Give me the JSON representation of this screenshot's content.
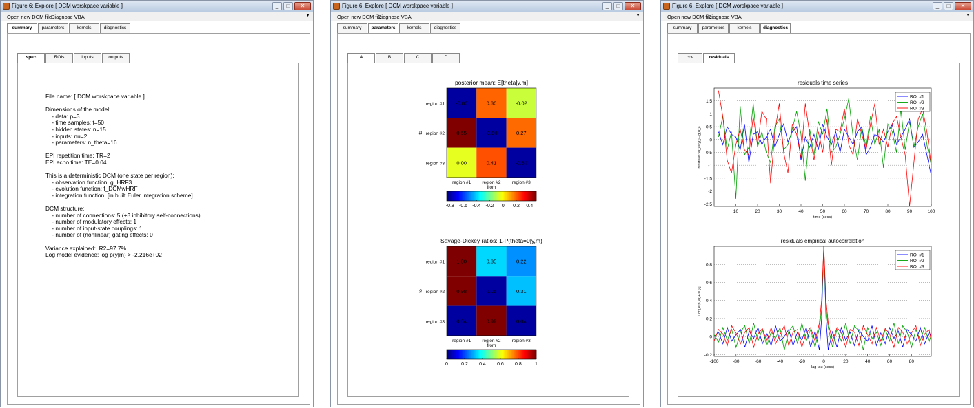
{
  "windows": [
    {
      "title": "Figure 6: Explore [ DCM worskpace variable ]",
      "menu": [
        "Open new DCM file",
        "Diagnose VBA"
      ],
      "tabs": [
        "summary",
        "parameters",
        "kernels",
        "diagnostics"
      ],
      "subtabs": [
        "spec",
        "ROIs",
        "inputs",
        "outputs"
      ]
    },
    {
      "title": "Figure 6: Explore [ DCM worskpace variable ]",
      "menu": [
        "Open new DCM file",
        "Diagnose VBA"
      ],
      "tabs": [
        "summary",
        "parameters",
        "kernels",
        "diagnostics"
      ],
      "subtabs": [
        "A",
        "B",
        "C",
        "D"
      ]
    },
    {
      "title": "Figure 6: Explore [ DCM worskpace variable ]",
      "menu": [
        "Open new DCM file",
        "Diagnose VBA"
      ],
      "tabs": [
        "summary",
        "parameters",
        "kernels",
        "diagnostics"
      ],
      "subtabs": [
        "cov",
        "residuals"
      ]
    }
  ],
  "summary_lines": [
    "File name: [ DCM worskpace variable ]",
    "",
    "Dimensions of the model:",
    "    - data: p=3",
    "    - time samples: t=50",
    "    - hidden states: n=15",
    "    - inputs: nu=2",
    "    - parameters: n_theta=16",
    "",
    "EPI repetition time: TR=2",
    "EPI echo time: TE=0.04",
    "",
    "This is a deterministic DCM (one state per region):",
    "    - observation function: g_HRF3",
    "    - evolution function: f_DCMwHRF",
    "    - integration function: [in built Euler integration scheme]",
    "",
    "DCM structure:",
    "    - number of connections: 5 (+3 inhibitory self-connections)",
    "    - number of modulatory effects: 1",
    "    - number of input-state couplings: 1",
    "    - number of (nonlinear) gating effects: 0",
    "",
    "Variance explained:  R2=97.7%",
    "Log model evidence: log p(y|m) > -2.216e+02"
  ],
  "chart_data": [
    {
      "type": "heatmap",
      "title": "posterior mean: E[theta|y,m]",
      "xlabel": "from",
      "ylabel": "to",
      "rows": [
        "region #1",
        "region #2",
        "region #3"
      ],
      "cols": [
        "region #1",
        "region #2",
        "region #3"
      ],
      "values": [
        [
          -0.8,
          0.3,
          -0.02
        ],
        [
          0.55,
          -0.8,
          0.27
        ],
        [
          0.0,
          0.41,
          -0.8
        ]
      ],
      "labels": [
        [
          "-0.80",
          "0.30",
          "-0.02"
        ],
        [
          "0.55",
          "-0.80",
          "0.27"
        ],
        [
          "0.00",
          "0.41",
          "-0.80"
        ]
      ],
      "colors": [
        [
          "#0000a0",
          "#ff6400",
          "#c8ff3a"
        ],
        [
          "#800000",
          "#0000a0",
          "#ff6a00"
        ],
        [
          "#e6ff20",
          "#ff5000",
          "#0000a0"
        ]
      ],
      "colorbar": {
        "min": -0.85,
        "max": 0.5,
        "ticks": [
          "-0.8",
          "-0.6",
          "-0.4",
          "-0.2",
          "0",
          "0.2",
          "0.4"
        ]
      }
    },
    {
      "type": "heatmap",
      "title": "Savage-Dickey ratios: 1-P(theta=0|y,m)",
      "xlabel": "from",
      "ylabel": "to",
      "rows": [
        "region #1",
        "region #2",
        "region #3"
      ],
      "cols": [
        "region #1",
        "region #2",
        "region #3"
      ],
      "values": [
        [
          1.0,
          0.35,
          0.22
        ],
        [
          0.98,
          0.05,
          0.31
        ],
        [
          0.04,
          0.99,
          0.04
        ]
      ],
      "labels": [
        [
          "1.00",
          "0.35",
          "0.22"
        ],
        [
          "0.98",
          "0.05",
          "0.31"
        ],
        [
          "0.04",
          "0.99",
          "0.04"
        ]
      ],
      "colors": [
        [
          "#7f0000",
          "#00d8ff",
          "#0090ff"
        ],
        [
          "#800000",
          "#0000a0",
          "#00c0ff"
        ],
        [
          "#0000a0",
          "#800000",
          "#0000a0"
        ]
      ],
      "colorbar": {
        "min": 0,
        "max": 1,
        "ticks": [
          "0",
          "0.2",
          "0.4",
          "0.6",
          "0.8",
          "1"
        ]
      }
    },
    {
      "type": "line",
      "title": "residuals time series",
      "xlabel": "time (secs)",
      "ylabel": "residuals: e(t) = y(t) - g(x(t))",
      "xlim": [
        0,
        100
      ],
      "ylim": [
        -2.6,
        2.0
      ],
      "xticks": [
        "10",
        "20",
        "30",
        "40",
        "50",
        "60",
        "70",
        "80",
        "90",
        "100"
      ],
      "yticks": [
        "1.5",
        "1",
        "0.5",
        "0",
        "-0.5",
        "-1",
        "-1.5",
        "-2",
        "-2.5"
      ],
      "x": [
        2,
        4,
        6,
        8,
        10,
        12,
        14,
        16,
        18,
        20,
        22,
        24,
        26,
        28,
        30,
        32,
        34,
        36,
        38,
        40,
        42,
        44,
        46,
        48,
        50,
        52,
        54,
        56,
        58,
        60,
        62,
        64,
        66,
        68,
        70,
        72,
        74,
        76,
        78,
        80,
        82,
        84,
        86,
        88,
        90,
        92,
        94,
        96,
        98,
        100
      ],
      "series": [
        {
          "name": "ROI #1",
          "color": "#0000ff",
          "values": [
            0.3,
            -0.2,
            0.5,
            0.2,
            0.1,
            -0.4,
            0.6,
            -0.9,
            0.2,
            0.3,
            -0.2,
            0.1,
            0.4,
            -0.3,
            0.2,
            0.6,
            -0.1,
            0.3,
            0.5,
            -0.8,
            0.1,
            -0.3,
            0.2,
            -0.4,
            0.6,
            0.1,
            -0.2,
            0.3,
            -0.5,
            0.4,
            0.1,
            -0.2,
            0.3,
            0.5,
            -0.6,
            -0.3,
            0.2,
            0.1,
            -0.1,
            0.3,
            0.6,
            -0.2,
            0.1,
            0.4,
            0.8,
            -0.3,
            -0.1,
            0.2,
            -0.6,
            -1.4
          ]
        },
        {
          "name": "ROI #2",
          "color": "#00a000",
          "values": [
            0.1,
            0.9,
            -0.4,
            0.3,
            -2.3,
            1.3,
            -0.6,
            -0.3,
            1.4,
            -0.3,
            0.3,
            -0.5,
            -0.9,
            0.5,
            0.8,
            -0.4,
            -0.2,
            0.4,
            1.1,
            0.2,
            -1.6,
            0.4,
            -0.6,
            0.7,
            0.2,
            1.2,
            -0.5,
            -0.3,
            0.2,
            0.8,
            1.6,
            0.1,
            -0.8,
            0.5,
            -0.3,
            0.9,
            -0.2,
            0.4,
            -1.1,
            0.6,
            0.3,
            -0.5,
            1.2,
            -0.4,
            0.7,
            -0.3,
            0.5,
            1.0,
            -0.2,
            -1.0
          ]
        },
        {
          "name": "ROI #3",
          "color": "#ff0000",
          "values": [
            1.9,
            0.9,
            -0.8,
            -1.3,
            -0.2,
            0.4,
            -0.4,
            -0.6,
            0.9,
            -0.2,
            1.1,
            0.8,
            -1.7,
            0.3,
            1.4,
            -0.5,
            -1.3,
            0.6,
            0.2,
            -0.7,
            1.4,
            0.2,
            -0.8,
            0.3,
            -0.5,
            0.8,
            -1.0,
            0.4,
            0.3,
            1.2,
            -0.2,
            -0.6,
            0.8,
            0.2,
            -0.4,
            0.6,
            1.4,
            -0.2,
            0.4,
            -0.3,
            0.6,
            0.9,
            0.1,
            -0.6,
            -2.6,
            -0.9,
            0.8,
            1.2,
            0.3,
            -1.0
          ]
        }
      ]
    },
    {
      "type": "line",
      "title": "residuals empirical autocorrelation",
      "xlabel": "lag tau (secs)",
      "ylabel": "Corr[ e(t), e(t+tau) ]",
      "xlim": [
        -100,
        98
      ],
      "ylim": [
        -0.22,
        1.0
      ],
      "xticks": [
        "-100",
        "-80",
        "-60",
        "-40",
        "-20",
        "0",
        "20",
        "40",
        "60",
        "80"
      ],
      "yticks": [
        "0.8",
        "0.6",
        "0.4",
        "0.2",
        "0",
        "-0.2"
      ],
      "x": [
        -100,
        -96,
        -92,
        -88,
        -84,
        -80,
        -76,
        -72,
        -68,
        -64,
        -60,
        -56,
        -52,
        -48,
        -44,
        -40,
        -36,
        -32,
        -28,
        -24,
        -20,
        -16,
        -12,
        -8,
        -4,
        -2,
        0,
        2,
        4,
        8,
        12,
        16,
        20,
        24,
        28,
        32,
        36,
        40,
        44,
        48,
        52,
        56,
        60,
        64,
        68,
        72,
        76,
        80,
        84,
        88,
        92,
        96,
        98
      ],
      "series": [
        {
          "name": "ROI #1",
          "color": "#0000ff",
          "values": [
            0.0,
            0.05,
            -0.08,
            0.1,
            -0.05,
            0.02,
            0.08,
            -0.12,
            0.06,
            -0.02,
            0.1,
            -0.08,
            0.04,
            -0.1,
            0.12,
            -0.05,
            0.0,
            0.08,
            -0.1,
            0.05,
            -0.04,
            0.1,
            -0.12,
            0.06,
            -0.15,
            0.2,
            1.0,
            0.2,
            -0.15,
            0.06,
            -0.12,
            0.1,
            -0.04,
            0.05,
            -0.1,
            0.08,
            0.0,
            -0.05,
            0.12,
            -0.1,
            0.04,
            -0.08,
            0.1,
            -0.02,
            0.06,
            -0.12,
            0.08,
            0.02,
            -0.05,
            0.1,
            -0.08,
            0.05,
            0.0
          ]
        },
        {
          "name": "ROI #2",
          "color": "#00a000",
          "values": [
            0.02,
            -0.06,
            0.1,
            -0.04,
            0.08,
            -0.12,
            0.05,
            0.12,
            -0.08,
            0.15,
            -0.05,
            0.08,
            -0.1,
            0.05,
            -0.02,
            0.1,
            -0.15,
            0.06,
            0.12,
            -0.08,
            0.15,
            -0.05,
            0.08,
            -0.12,
            0.1,
            0.3,
            1.0,
            0.3,
            0.1,
            -0.12,
            0.08,
            -0.05,
            0.15,
            -0.08,
            0.12,
            0.06,
            -0.15,
            0.1,
            -0.02,
            0.05,
            -0.1,
            0.08,
            -0.05,
            0.15,
            -0.08,
            0.12,
            0.05,
            -0.12,
            0.08,
            -0.04,
            0.1,
            -0.06,
            0.02
          ]
        },
        {
          "name": "ROI #3",
          "color": "#ff0000",
          "values": [
            -0.05,
            0.08,
            0.03,
            -0.1,
            0.12,
            0.04,
            -0.08,
            0.05,
            0.1,
            -0.12,
            0.03,
            0.09,
            -0.05,
            0.1,
            -0.08,
            0.02,
            0.12,
            -0.1,
            0.05,
            0.08,
            -0.12,
            0.04,
            0.1,
            -0.05,
            0.15,
            0.4,
            1.0,
            0.4,
            0.15,
            -0.05,
            0.1,
            0.04,
            -0.12,
            0.08,
            0.05,
            -0.1,
            0.12,
            0.02,
            -0.08,
            0.1,
            -0.05,
            0.09,
            0.03,
            -0.12,
            0.1,
            0.05,
            -0.08,
            0.04,
            0.12,
            -0.1,
            0.03,
            0.08,
            -0.05
          ]
        }
      ]
    }
  ]
}
